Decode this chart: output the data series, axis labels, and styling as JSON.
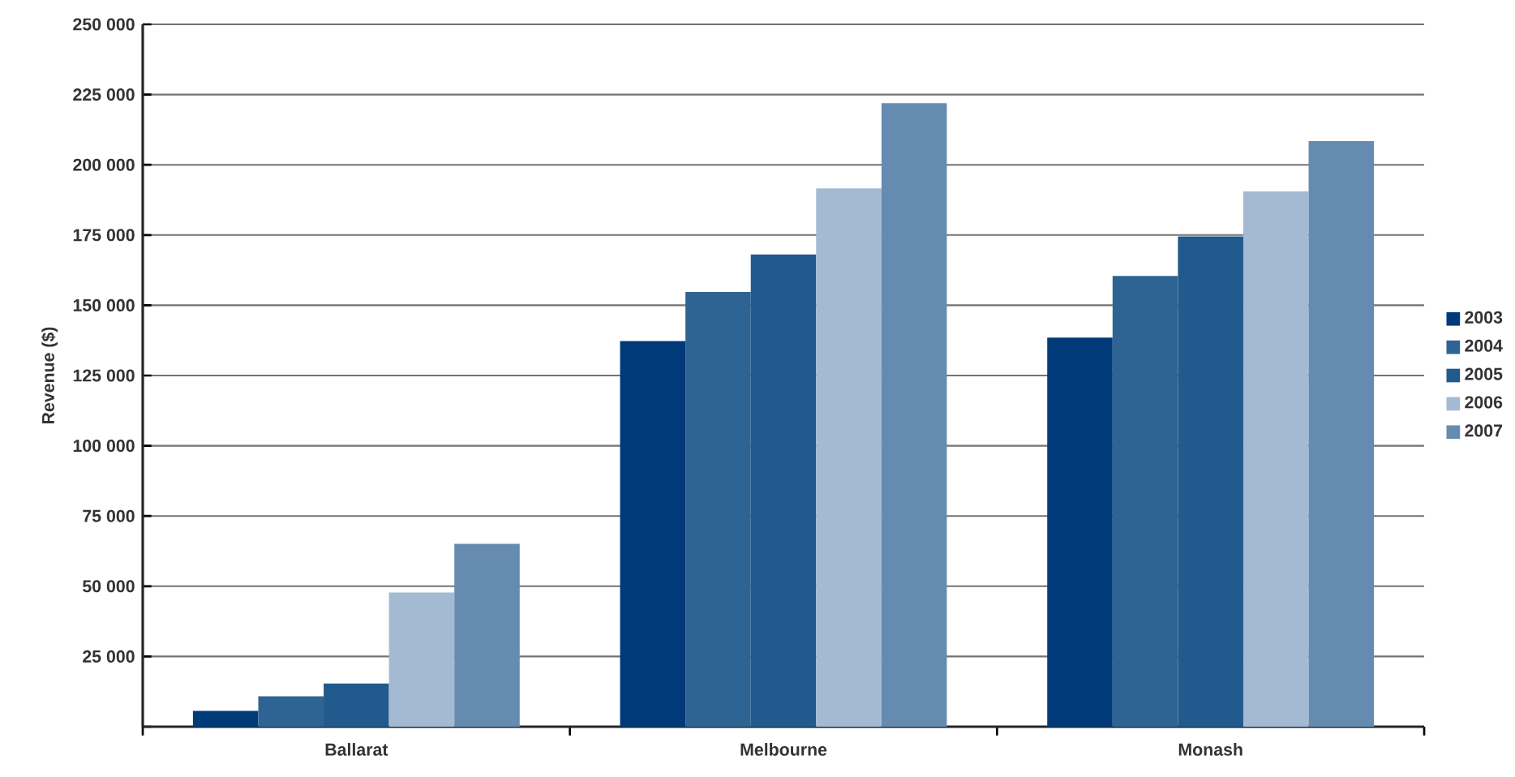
{
  "chart_data": {
    "type": "bar",
    "ylabel": "Revenue ($)",
    "categories": [
      "Ballarat",
      "Melbourne",
      "Monash"
    ],
    "series": [
      {
        "name": "2003",
        "color": "#003a78",
        "values": [
          5600,
          137300,
          138500
        ]
      },
      {
        "name": "2004",
        "color": "#2e6493",
        "values": [
          10800,
          154700,
          160400
        ]
      },
      {
        "name": "2005",
        "color": "#215a8c",
        "values": [
          15400,
          168100,
          174500
        ]
      },
      {
        "name": "2006",
        "color": "#a4bad2",
        "values": [
          47800,
          191600,
          190500
        ]
      },
      {
        "name": "2007",
        "color": "#668bb0",
        "values": [
          65100,
          221900,
          208400
        ]
      }
    ],
    "ylim": [
      0,
      250000
    ],
    "yticks": [
      {
        "value": 0,
        "label": null
      },
      {
        "value": 25000,
        "label": "25 000"
      },
      {
        "value": 50000,
        "label": "50 000"
      },
      {
        "value": 75000,
        "label": "75 000"
      },
      {
        "value": 100000,
        "label": "100 000"
      },
      {
        "value": 125000,
        "label": "125 000"
      },
      {
        "value": 150000,
        "label": "150 000"
      },
      {
        "value": 175000,
        "label": "175 000"
      },
      {
        "value": 200000,
        "label": "200 000"
      },
      {
        "value": 225000,
        "label": "225 000"
      },
      {
        "value": 250000,
        "label": "250 000"
      }
    ],
    "grid": "y",
    "legend": "right"
  }
}
